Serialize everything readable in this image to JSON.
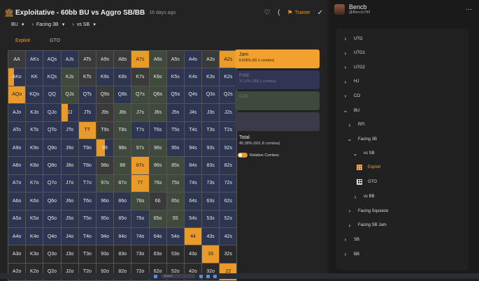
{
  "header": {
    "title": "Exploitative - 60bb BU vs Aggro SB/BB",
    "time_ago": "16 days ago",
    "trainer_label": "Trainer"
  },
  "filters": [
    {
      "label": "BU"
    },
    {
      "label": "Facing 3B"
    },
    {
      "label": "vs SB"
    }
  ],
  "tabs": [
    {
      "label": "Exploit",
      "active": true
    },
    {
      "label": "GTO",
      "active": false
    }
  ],
  "grid": {
    "labels": [
      [
        "AA",
        "AKs",
        "AQs",
        "AJs",
        "ATs",
        "A9s",
        "A8s",
        "A7s",
        "A6s",
        "A5s",
        "A4s",
        "A3s",
        "A2s"
      ],
      [
        "AKo",
        "KK",
        "KQs",
        "KJs",
        "KTs",
        "K9s",
        "K8s",
        "K7s",
        "K6s",
        "K5s",
        "K4s",
        "K3s",
        "K2s"
      ],
      [
        "AQo",
        "KQo",
        "QQ",
        "QJs",
        "QTs",
        "Q9s",
        "Q8s",
        "Q7s",
        "Q6s",
        "Q5s",
        "Q4s",
        "Q3s",
        "Q2s"
      ],
      [
        "AJo",
        "KJo",
        "QJo",
        "JJ",
        "JTs",
        "J9s",
        "J8s",
        "J7s",
        "J6s",
        "J5s",
        "J4s",
        "J3s",
        "J2s"
      ],
      [
        "ATo",
        "KTo",
        "QTo",
        "JTo",
        "TT",
        "T9s",
        "T8s",
        "T7s",
        "T6s",
        "T5s",
        "T4s",
        "T3s",
        "T2s"
      ],
      [
        "A9o",
        "K9o",
        "Q9o",
        "J9o",
        "T9o",
        "99",
        "98s",
        "97s",
        "96s",
        "95s",
        "94s",
        "93s",
        "92s"
      ],
      [
        "A8o",
        "K8o",
        "Q8o",
        "J8o",
        "T8o",
        "98o",
        "88",
        "87s",
        "86s",
        "85s",
        "84s",
        "83s",
        "82s"
      ],
      [
        "A7o",
        "K7o",
        "Q7o",
        "J7o",
        "T7o",
        "97o",
        "87o",
        "77",
        "76s",
        "75s",
        "74s",
        "73s",
        "72s"
      ],
      [
        "A6o",
        "K6o",
        "Q6o",
        "J6o",
        "T6o",
        "96o",
        "86o",
        "76o",
        "66",
        "65s",
        "64s",
        "63s",
        "62s"
      ],
      [
        "A5o",
        "K5o",
        "Q5o",
        "J5o",
        "T5o",
        "95o",
        "85o",
        "75o",
        "65o",
        "55",
        "54s",
        "53s",
        "52s"
      ],
      [
        "A4o",
        "K4o",
        "Q4o",
        "J4o",
        "T4o",
        "94o",
        "84o",
        "74o",
        "64o",
        "54o",
        "44",
        "43s",
        "42s"
      ],
      [
        "A3o",
        "K3o",
        "Q3o",
        "J3o",
        "T3o",
        "93o",
        "83o",
        "73o",
        "63o",
        "53o",
        "43o",
        "33",
        "32s"
      ],
      [
        "A2o",
        "K2o",
        "Q2o",
        "J2o",
        "T2o",
        "92o",
        "82o",
        "72o",
        "62o",
        "52o",
        "42o",
        "32o",
        "22"
      ]
    ],
    "jam_fraction": [
      [
        0,
        0,
        0,
        0,
        0,
        0,
        0,
        1,
        0,
        0,
        0,
        0,
        1
      ],
      [
        0.35,
        0,
        0,
        0,
        0,
        0,
        0,
        0,
        0,
        0,
        0,
        0,
        0
      ],
      [
        1,
        0,
        0,
        0,
        0,
        0,
        0,
        0,
        0,
        0,
        0,
        0,
        0
      ],
      [
        0,
        0,
        0,
        0.4,
        0,
        0,
        0,
        0,
        0,
        0,
        0,
        0,
        0
      ],
      [
        0,
        0,
        0,
        0,
        1,
        0,
        0,
        0,
        0,
        0,
        0,
        0,
        0
      ],
      [
        0,
        0,
        0,
        0,
        0,
        0.5,
        0,
        0,
        0,
        0,
        0,
        0,
        0
      ],
      [
        0,
        0,
        0,
        0,
        0,
        0,
        0,
        1,
        0,
        0,
        0,
        0,
        0
      ],
      [
        0,
        0,
        0,
        0,
        0,
        0,
        0,
        1,
        0,
        0,
        0,
        0,
        0
      ],
      [
        0,
        0,
        0,
        0,
        0,
        0,
        0,
        0,
        0,
        0,
        0,
        0,
        0
      ],
      [
        0,
        0,
        0,
        0,
        0,
        0,
        0,
        0,
        0,
        0,
        0,
        0,
        0
      ],
      [
        0,
        0,
        0,
        0,
        0,
        0,
        0,
        0,
        0,
        0,
        1,
        0,
        0
      ],
      [
        0,
        0,
        0,
        0,
        0,
        0,
        0,
        0,
        0,
        0,
        0,
        1,
        0
      ],
      [
        0,
        0,
        0,
        0,
        0,
        0,
        0,
        0,
        0,
        0,
        0,
        0,
        1
      ]
    ],
    "tone": [
      [
        "gray",
        "navy",
        "navy",
        "navy",
        "gray",
        "gray",
        "gray",
        "navy",
        "green",
        "gray",
        "navy",
        "gray",
        "navy"
      ],
      [
        "navy",
        "navy",
        "navy",
        "green",
        "gray",
        "navy",
        "navy",
        "gray",
        "green",
        "navy",
        "navy",
        "navy",
        "navy"
      ],
      [
        "navy",
        "navy",
        "navy",
        "green",
        "navy",
        "gray",
        "navy",
        "green",
        "green",
        "navy",
        "navy",
        "navy",
        "navy"
      ],
      [
        "navy",
        "navy",
        "navy",
        "navy",
        "navy",
        "gray",
        "green",
        "green",
        "green",
        "navy",
        "navy",
        "navy",
        "navy"
      ],
      [
        "navy",
        "navy",
        "navy",
        "navy",
        "navy",
        "gray",
        "green",
        "navy",
        "navy",
        "navy",
        "navy",
        "navy",
        "navy"
      ],
      [
        "navy",
        "navy",
        "navy",
        "navy",
        "navy",
        "navy",
        "green",
        "green",
        "green",
        "navy",
        "navy",
        "navy",
        "navy"
      ],
      [
        "navy",
        "navy",
        "navy",
        "navy",
        "navy",
        "gray",
        "green",
        "navy",
        "green",
        "green",
        "navy",
        "navy",
        "navy"
      ],
      [
        "navy",
        "navy",
        "navy",
        "navy",
        "navy",
        "green",
        "green",
        "navy",
        "green",
        "green",
        "navy",
        "navy",
        "navy"
      ],
      [
        "navy",
        "navy",
        "navy",
        "navy",
        "navy",
        "navy",
        "navy",
        "green",
        "gray",
        "green",
        "navy",
        "navy",
        "navy"
      ],
      [
        "navy",
        "navy",
        "navy",
        "navy",
        "navy",
        "navy",
        "navy",
        "navy",
        "green",
        "green",
        "navy",
        "navy",
        "navy"
      ],
      [
        "navy",
        "navy",
        "navy",
        "navy",
        "navy",
        "navy",
        "navy",
        "navy",
        "navy",
        "navy",
        "navy",
        "navy",
        "navy"
      ],
      [
        "dark",
        "dark",
        "dark",
        "dark",
        "dark",
        "dark",
        "dark",
        "dark",
        "dark",
        "dark",
        "dark",
        "navy",
        "dark"
      ],
      [
        "dark",
        "dark",
        "dark",
        "dark",
        "dark",
        "dark",
        "dark",
        "dark",
        "dark",
        "dark",
        "dark",
        "dark",
        "dark"
      ]
    ]
  },
  "legend": {
    "jam": {
      "label": "Jam",
      "sub": "8.605% (82.2 combos)"
    },
    "fold": {
      "label": "Fold",
      "sub": "37.17% (355.1 combos)"
    },
    "call": {
      "label": "Call",
      "sub": ""
    },
    "other": {
      "label": "",
      "sub": ""
    }
  },
  "total": {
    "label": "Total",
    "sub": "45.38% (601.8 combos)"
  },
  "toggle_label": "Relative Combos",
  "user": {
    "name": "Bencb",
    "handle": "@Bencb789"
  },
  "tree": [
    {
      "label": "UTG",
      "chev": "right",
      "depth": 0
    },
    {
      "label": "UTG1",
      "chev": "right",
      "depth": 0
    },
    {
      "label": "UTG2",
      "chev": "right",
      "depth": 0
    },
    {
      "label": "HJ",
      "chev": "right",
      "depth": 0
    },
    {
      "label": "CO",
      "chev": "right",
      "depth": 0
    },
    {
      "label": "BU",
      "chev": "down",
      "depth": 0
    },
    {
      "label": "RFI",
      "chev": "right",
      "depth": 1
    },
    {
      "label": "Facing 3B",
      "chev": "down",
      "depth": 1
    },
    {
      "label": "vs SB",
      "chev": "down",
      "depth": 2
    },
    {
      "label": "Exploit",
      "chev": "grid-orange",
      "depth": 3,
      "active": true
    },
    {
      "label": "GTO",
      "chev": "grid-white",
      "depth": 3
    },
    {
      "label": "vs BB",
      "chev": "right",
      "depth": 2
    },
    {
      "label": "Facing Squeeze",
      "chev": "right",
      "depth": 1
    },
    {
      "label": "Facing SB Jam",
      "chev": "right",
      "depth": 1
    },
    {
      "label": "SB",
      "chev": "right",
      "depth": 0
    },
    {
      "label": "BB",
      "chev": "right",
      "depth": 0
    }
  ],
  "taskbar": {
    "search_placeholder": "Search"
  },
  "colors": {
    "accent": "#e89a2a",
    "bg": "#232323"
  }
}
